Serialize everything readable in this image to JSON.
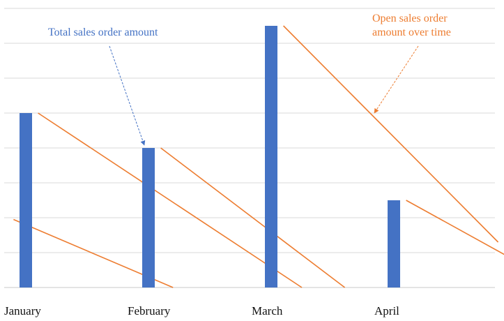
{
  "chart_data": {
    "type": "bar",
    "categories": [
      "January",
      "February",
      "March",
      "April"
    ],
    "ylim": [
      0,
      8
    ],
    "grid": true,
    "series": [
      {
        "kind": "bar",
        "name": "Total sales order amount",
        "color": "#4472C4",
        "values": [
          5,
          4,
          7.5,
          2.5
        ]
      },
      {
        "kind": "line",
        "name": "Open sales order amount over time",
        "color": "#ED7D31",
        "segments": [
          [
            [
              -0.1,
              1.95
            ],
            [
              1.2,
              0
            ]
          ],
          [
            [
              0.1,
              5
            ],
            [
              2.25,
              0
            ]
          ],
          [
            [
              1.1,
              4
            ],
            [
              2.6,
              0
            ]
          ],
          [
            [
              2.1,
              7.5
            ],
            [
              3.85,
              1.3
            ]
          ],
          [
            [
              3.1,
              2.5
            ],
            [
              3.95,
              0.85
            ]
          ]
        ]
      }
    ],
    "annotations": [
      {
        "text": "Total sales order amount",
        "color": "#4472C4",
        "points_to": "February"
      },
      {
        "text_lines": [
          "Open sales order",
          "amount over time"
        ],
        "color": "#ED7D31",
        "points_to": "March line"
      }
    ]
  }
}
